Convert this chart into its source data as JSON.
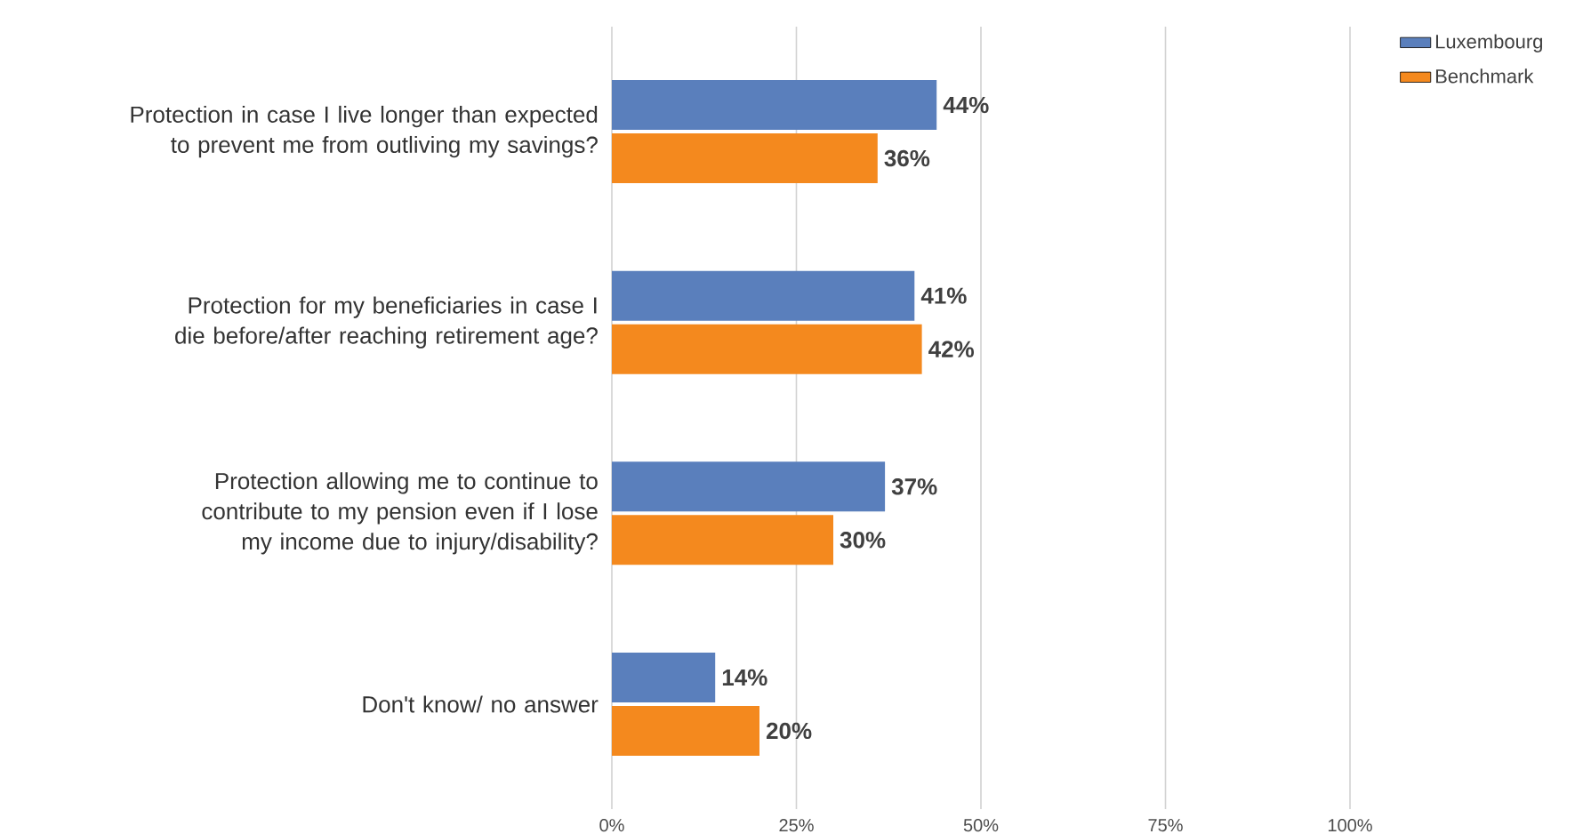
{
  "chart_data": {
    "type": "bar",
    "orientation": "horizontal",
    "categories": [
      "Protection in case I live longer than expected to prevent me from outliving my savings?",
      "Protection for my beneficiaries in case I die before/after reaching retirement age?",
      "Protection allowing me to continue to contribute to my pension even if I lose my income due to injury/disability?",
      "Don't know/ no answer"
    ],
    "series": [
      {
        "name": "Luxembourg",
        "color": "#5a7fbc",
        "values": [
          44,
          41,
          37,
          14
        ],
        "value_labels": [
          "44%",
          "41%",
          "37%",
          "14%"
        ]
      },
      {
        "name": "Benchmark",
        "color": "#f4891e",
        "values": [
          36,
          42,
          30,
          20
        ],
        "value_labels": [
          "36%",
          "42%",
          "30%",
          "20%"
        ]
      }
    ],
    "xlim": [
      0,
      100
    ],
    "xticks": [
      {
        "value": 0,
        "label": "0%"
      },
      {
        "value": 25,
        "label": "25%"
      },
      {
        "value": 50,
        "label": "50%"
      },
      {
        "value": 75,
        "label": "75%"
      },
      {
        "value": 100,
        "label": "100%"
      }
    ],
    "grid": "x",
    "legend": "top right"
  }
}
